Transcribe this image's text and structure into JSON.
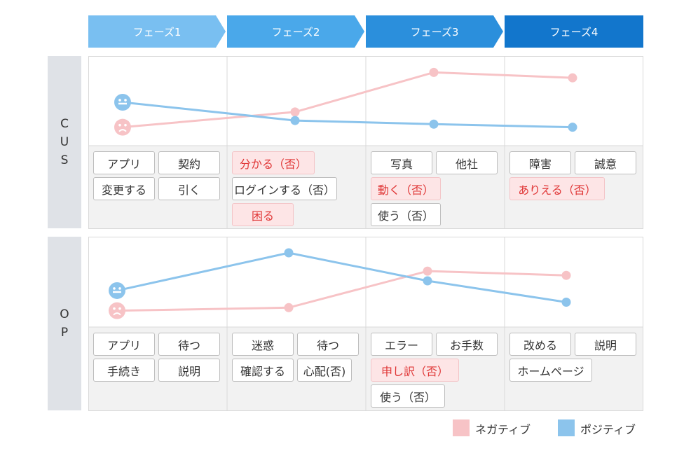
{
  "colors": {
    "negative": "#f7c3c6",
    "positive": "#8cc4ec",
    "phase": [
      "#79bff1",
      "#4aa8ea",
      "#2b8fdc",
      "#1276cc"
    ]
  },
  "phases": [
    "フェーズ1",
    "フェーズ2",
    "フェーズ3",
    "フェーズ4"
  ],
  "rows": [
    {
      "label": [
        "C",
        "U",
        "S"
      ],
      "cells": [
        [
          {
            "text": "アプリ",
            "neg": false
          },
          {
            "text": "契約",
            "neg": false
          },
          {
            "text": "変更する",
            "neg": false
          },
          {
            "text": "引く",
            "neg": false
          }
        ],
        [
          {
            "text": "分かる（否）",
            "neg": true
          },
          {
            "text": "ログインする（否）",
            "neg": false
          },
          {
            "text": "困る",
            "neg": true
          }
        ],
        [
          {
            "text": "写真",
            "neg": false
          },
          {
            "text": "他社",
            "neg": false
          },
          {
            "text": "動く（否）",
            "neg": true
          },
          {
            "text": "使う（否）",
            "neg": false
          }
        ],
        [
          {
            "text": "障害",
            "neg": false
          },
          {
            "text": "誠意",
            "neg": false
          },
          {
            "text": "ありえる（否）",
            "neg": true
          }
        ]
      ]
    },
    {
      "label": [
        "O",
        "P"
      ],
      "cells": [
        [
          {
            "text": "アプリ",
            "neg": false
          },
          {
            "text": "待つ",
            "neg": false
          },
          {
            "text": "手続き",
            "neg": false
          },
          {
            "text": "説明",
            "neg": false
          }
        ],
        [
          {
            "text": "迷惑",
            "neg": false
          },
          {
            "text": "待つ",
            "neg": false
          },
          {
            "text": "確認する",
            "neg": false
          },
          {
            "text": "心配(否)",
            "neg": false
          }
        ],
        [
          {
            "text": "エラー",
            "neg": false
          },
          {
            "text": "お手数",
            "neg": false
          },
          {
            "text": "申し訳（否）",
            "neg": true
          },
          {
            "text": "使う（否）",
            "neg": false
          }
        ],
        [
          {
            "text": "改める",
            "neg": false
          },
          {
            "text": "説明",
            "neg": false
          },
          {
            "text": "ホームページ",
            "neg": false
          }
        ]
      ]
    }
  ],
  "chart_data": [
    {
      "type": "line",
      "categories": [
        "フェーズ1",
        "フェーズ2",
        "フェーズ3",
        "フェーズ4"
      ],
      "ylim": [
        0,
        100
      ],
      "series": [
        {
          "name": "ネガティブ",
          "values": [
            5,
            30,
            95,
            86
          ]
        },
        {
          "name": "ポジティブ",
          "values": [
            46,
            16,
            10,
            5
          ]
        }
      ]
    },
    {
      "type": "line",
      "categories": [
        "フェーズ1",
        "フェーズ2",
        "フェーズ3",
        "フェーズ4"
      ],
      "ylim": [
        0,
        100
      ],
      "series": [
        {
          "name": "ネガティブ",
          "values": [
            5,
            10,
            70,
            63
          ]
        },
        {
          "name": "ポジティブ",
          "values": [
            38,
            100,
            54,
            19
          ]
        }
      ]
    }
  ],
  "legend": {
    "negative_label": "ネガティブ",
    "positive_label": "ポジティブ"
  }
}
